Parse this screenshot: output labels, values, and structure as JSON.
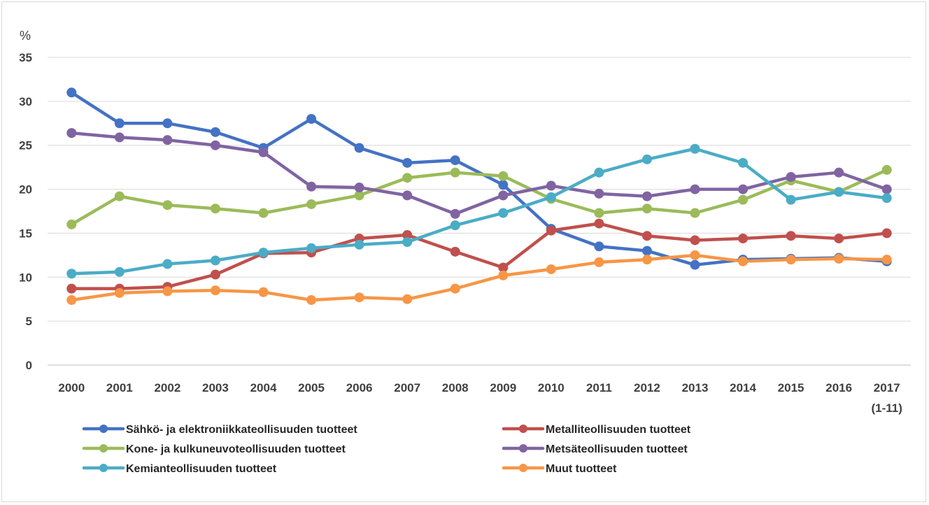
{
  "chart_data": {
    "type": "line",
    "unit_label": "%",
    "title": "",
    "xlabel": "",
    "ylabel": "",
    "ylim": [
      0,
      35
    ],
    "yticks": [
      "0",
      "5",
      "10",
      "15",
      "20",
      "25",
      "30",
      "35"
    ],
    "grid": true,
    "legend_position": "bottom",
    "categories": [
      "2000",
      "2001",
      "2002",
      "2003",
      "2004",
      "2005",
      "2006",
      "2007",
      "2008",
      "2009",
      "2010",
      "2011",
      "2012",
      "2013",
      "2014",
      "2015",
      "2016",
      "2017"
    ],
    "last_category_note": "(1-11)",
    "series": [
      {
        "name": "Sähkö- ja elektroniikkateollisuuden  tuotteet",
        "color": "#4472c4",
        "values": [
          31.0,
          27.5,
          27.5,
          26.5,
          24.7,
          28.0,
          24.7,
          23.0,
          23.3,
          20.5,
          15.5,
          13.5,
          13.0,
          11.4,
          12.0,
          12.1,
          12.2,
          11.8
        ]
      },
      {
        "name": "Metalliteollisuuden tuotteet",
        "color": "#c0504d",
        "values": [
          8.7,
          8.7,
          8.9,
          10.3,
          12.7,
          12.8,
          14.4,
          14.8,
          12.9,
          11.1,
          15.3,
          16.1,
          14.7,
          14.2,
          14.4,
          14.7,
          14.4,
          15.0
        ]
      },
      {
        "name": "Kone- ja kulkuneuvoteollisuuden tuotteet",
        "color": "#9bbb59",
        "values": [
          16.0,
          19.2,
          18.2,
          17.8,
          17.3,
          18.3,
          19.3,
          21.3,
          21.9,
          21.5,
          18.9,
          17.3,
          17.8,
          17.3,
          18.8,
          21.0,
          19.7,
          22.2
        ]
      },
      {
        "name": "Metsäteollisuuden tuotteet",
        "color": "#8064a2",
        "values": [
          26.4,
          25.9,
          25.6,
          25.0,
          24.2,
          20.3,
          20.2,
          19.3,
          17.2,
          19.3,
          20.4,
          19.5,
          19.2,
          20.0,
          20.0,
          21.4,
          21.9,
          20.0
        ]
      },
      {
        "name": "Kemianteollisuuden tuotteet",
        "color": "#4bacc6",
        "values": [
          10.4,
          10.6,
          11.5,
          11.9,
          12.8,
          13.3,
          13.7,
          14.0,
          15.9,
          17.3,
          19.1,
          21.9,
          23.4,
          24.6,
          23.0,
          18.8,
          19.7,
          19.0
        ]
      },
      {
        "name": "Muut tuotteet",
        "color": "#f79646",
        "values": [
          7.4,
          8.2,
          8.4,
          8.5,
          8.3,
          7.4,
          7.7,
          7.5,
          8.7,
          10.2,
          10.9,
          11.7,
          12.0,
          12.5,
          11.8,
          12.0,
          12.1,
          12.0
        ]
      }
    ]
  }
}
